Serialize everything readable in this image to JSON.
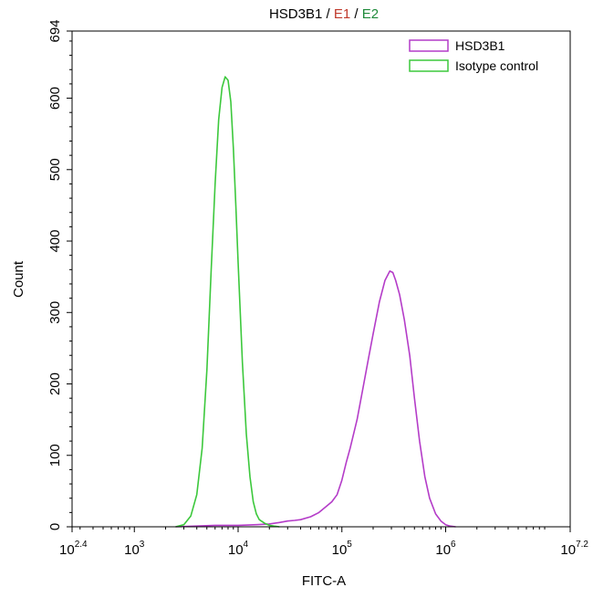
{
  "chart_data": {
    "type": "line",
    "title_parts": [
      {
        "text": "HSD3B1",
        "color": "#000000"
      },
      {
        "text": " / ",
        "color": "#000000"
      },
      {
        "text": "E1",
        "color": "#c0392b"
      },
      {
        "text": " / ",
        "color": "#000000"
      },
      {
        "text": "E2",
        "color": "#1e8a3a"
      }
    ],
    "xlabel": "FITC-A",
    "ylabel": "Count",
    "x_scale": "log",
    "xlim": [
      251.19,
      15848932
    ],
    "ylim": [
      0,
      694
    ],
    "x_ticks": [
      {
        "base": "10",
        "exp": "2.4",
        "value": 251.19
      },
      {
        "base": "10",
        "exp": "3",
        "value": 1000
      },
      {
        "base": "10",
        "exp": "4",
        "value": 10000
      },
      {
        "base": "10",
        "exp": "5",
        "value": 100000
      },
      {
        "base": "10",
        "exp": "6",
        "value": 1000000
      },
      {
        "base": "10",
        "exp": "7.2",
        "value": 15848932
      }
    ],
    "y_ticks": [
      "0",
      "100",
      "200",
      "300",
      "400",
      "500",
      "600",
      "694"
    ],
    "grid": false,
    "legend_position": "top-right",
    "series": [
      {
        "name": "HSD3B1",
        "color": "#b43cc8",
        "x": [
          2500,
          4000,
          6000,
          10000,
          15000,
          20000,
          25000,
          30000,
          35000,
          40000,
          50000,
          60000,
          70000,
          80000,
          90000,
          100000,
          110000,
          120000,
          140000,
          160000,
          180000,
          200000,
          230000,
          260000,
          290000,
          310000,
          330000,
          360000,
          400000,
          450000,
          500000,
          560000,
          630000,
          700000,
          800000,
          900000,
          1000000,
          1100000,
          1250000
        ],
        "y": [
          0,
          1,
          2,
          2,
          3,
          4,
          6,
          8,
          9,
          10,
          14,
          20,
          28,
          35,
          45,
          65,
          90,
          110,
          150,
          195,
          235,
          270,
          315,
          345,
          358,
          356,
          345,
          325,
          290,
          240,
          180,
          120,
          70,
          40,
          18,
          8,
          3,
          1,
          0
        ]
      },
      {
        "name": "Isotype control",
        "color": "#3cc83c",
        "x": [
          2500,
          3000,
          3500,
          4000,
          4500,
          5000,
          5500,
          6000,
          6500,
          7000,
          7500,
          8000,
          8500,
          9000,
          9500,
          10000,
          11000,
          12000,
          13000,
          14000,
          15000,
          16000,
          18000,
          20000,
          22000,
          25000
        ],
        "y": [
          0,
          3,
          15,
          45,
          110,
          220,
          360,
          480,
          570,
          615,
          630,
          625,
          595,
          530,
          450,
          370,
          230,
          130,
          70,
          35,
          18,
          10,
          5,
          2,
          1,
          0
        ]
      }
    ]
  }
}
